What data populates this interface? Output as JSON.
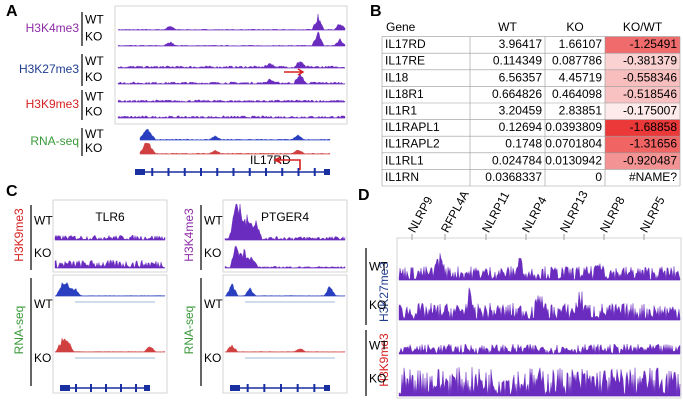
{
  "panels": {
    "A": {
      "label": "A",
      "marks": [
        "H3K4me3",
        "H3K27me3",
        "H3K9me3",
        "RNA-seq"
      ],
      "rows": [
        "WT",
        "KO"
      ],
      "gene": "IL17RD"
    },
    "B": {
      "label": "B",
      "table": {
        "header": [
          "Gene",
          "WT",
          "KO",
          "KO/WT"
        ],
        "rows": [
          [
            "IL17RD",
            3.96417,
            1.66107,
            -1.25491
          ],
          [
            "IL17RE",
            0.114349,
            0.087786,
            -0.381379
          ],
          [
            "IL18",
            6.56357,
            4.45719,
            -0.558346
          ],
          [
            "IL18R1",
            0.664826,
            0.464098,
            -0.518546
          ],
          [
            "IL1R1",
            3.20459,
            2.83851,
            -0.175007
          ],
          [
            "IL1RAPL1",
            0.12694,
            0.0393809,
            -1.68858
          ],
          [
            "IL1RAPL2",
            0.1748,
            0.0701804,
            -1.31656
          ],
          [
            "IL1RL1",
            0.024784,
            0.0130942,
            -0.920487
          ],
          [
            "IL1RN",
            0.0368337,
            0,
            "#NAME?"
          ]
        ]
      }
    },
    "C": {
      "label": "C",
      "left": {
        "gene": "TLR6",
        "marks": [
          "H3K9me3",
          "RNA-seq"
        ]
      },
      "right": {
        "gene": "PTGER4",
        "marks": [
          "H3K4me3",
          "RNA-seq"
        ]
      },
      "rows": [
        "WT",
        "KO"
      ]
    },
    "D": {
      "label": "D",
      "genes": [
        "NLRP9",
        "RFPL4A",
        "NLRP11",
        "NLRP4",
        "NLRP13",
        "NLRP8",
        "NLRP5"
      ],
      "marks": [
        "H3K27me3",
        "H3K9me3"
      ],
      "rows": [
        "WT",
        "KO"
      ]
    }
  }
}
